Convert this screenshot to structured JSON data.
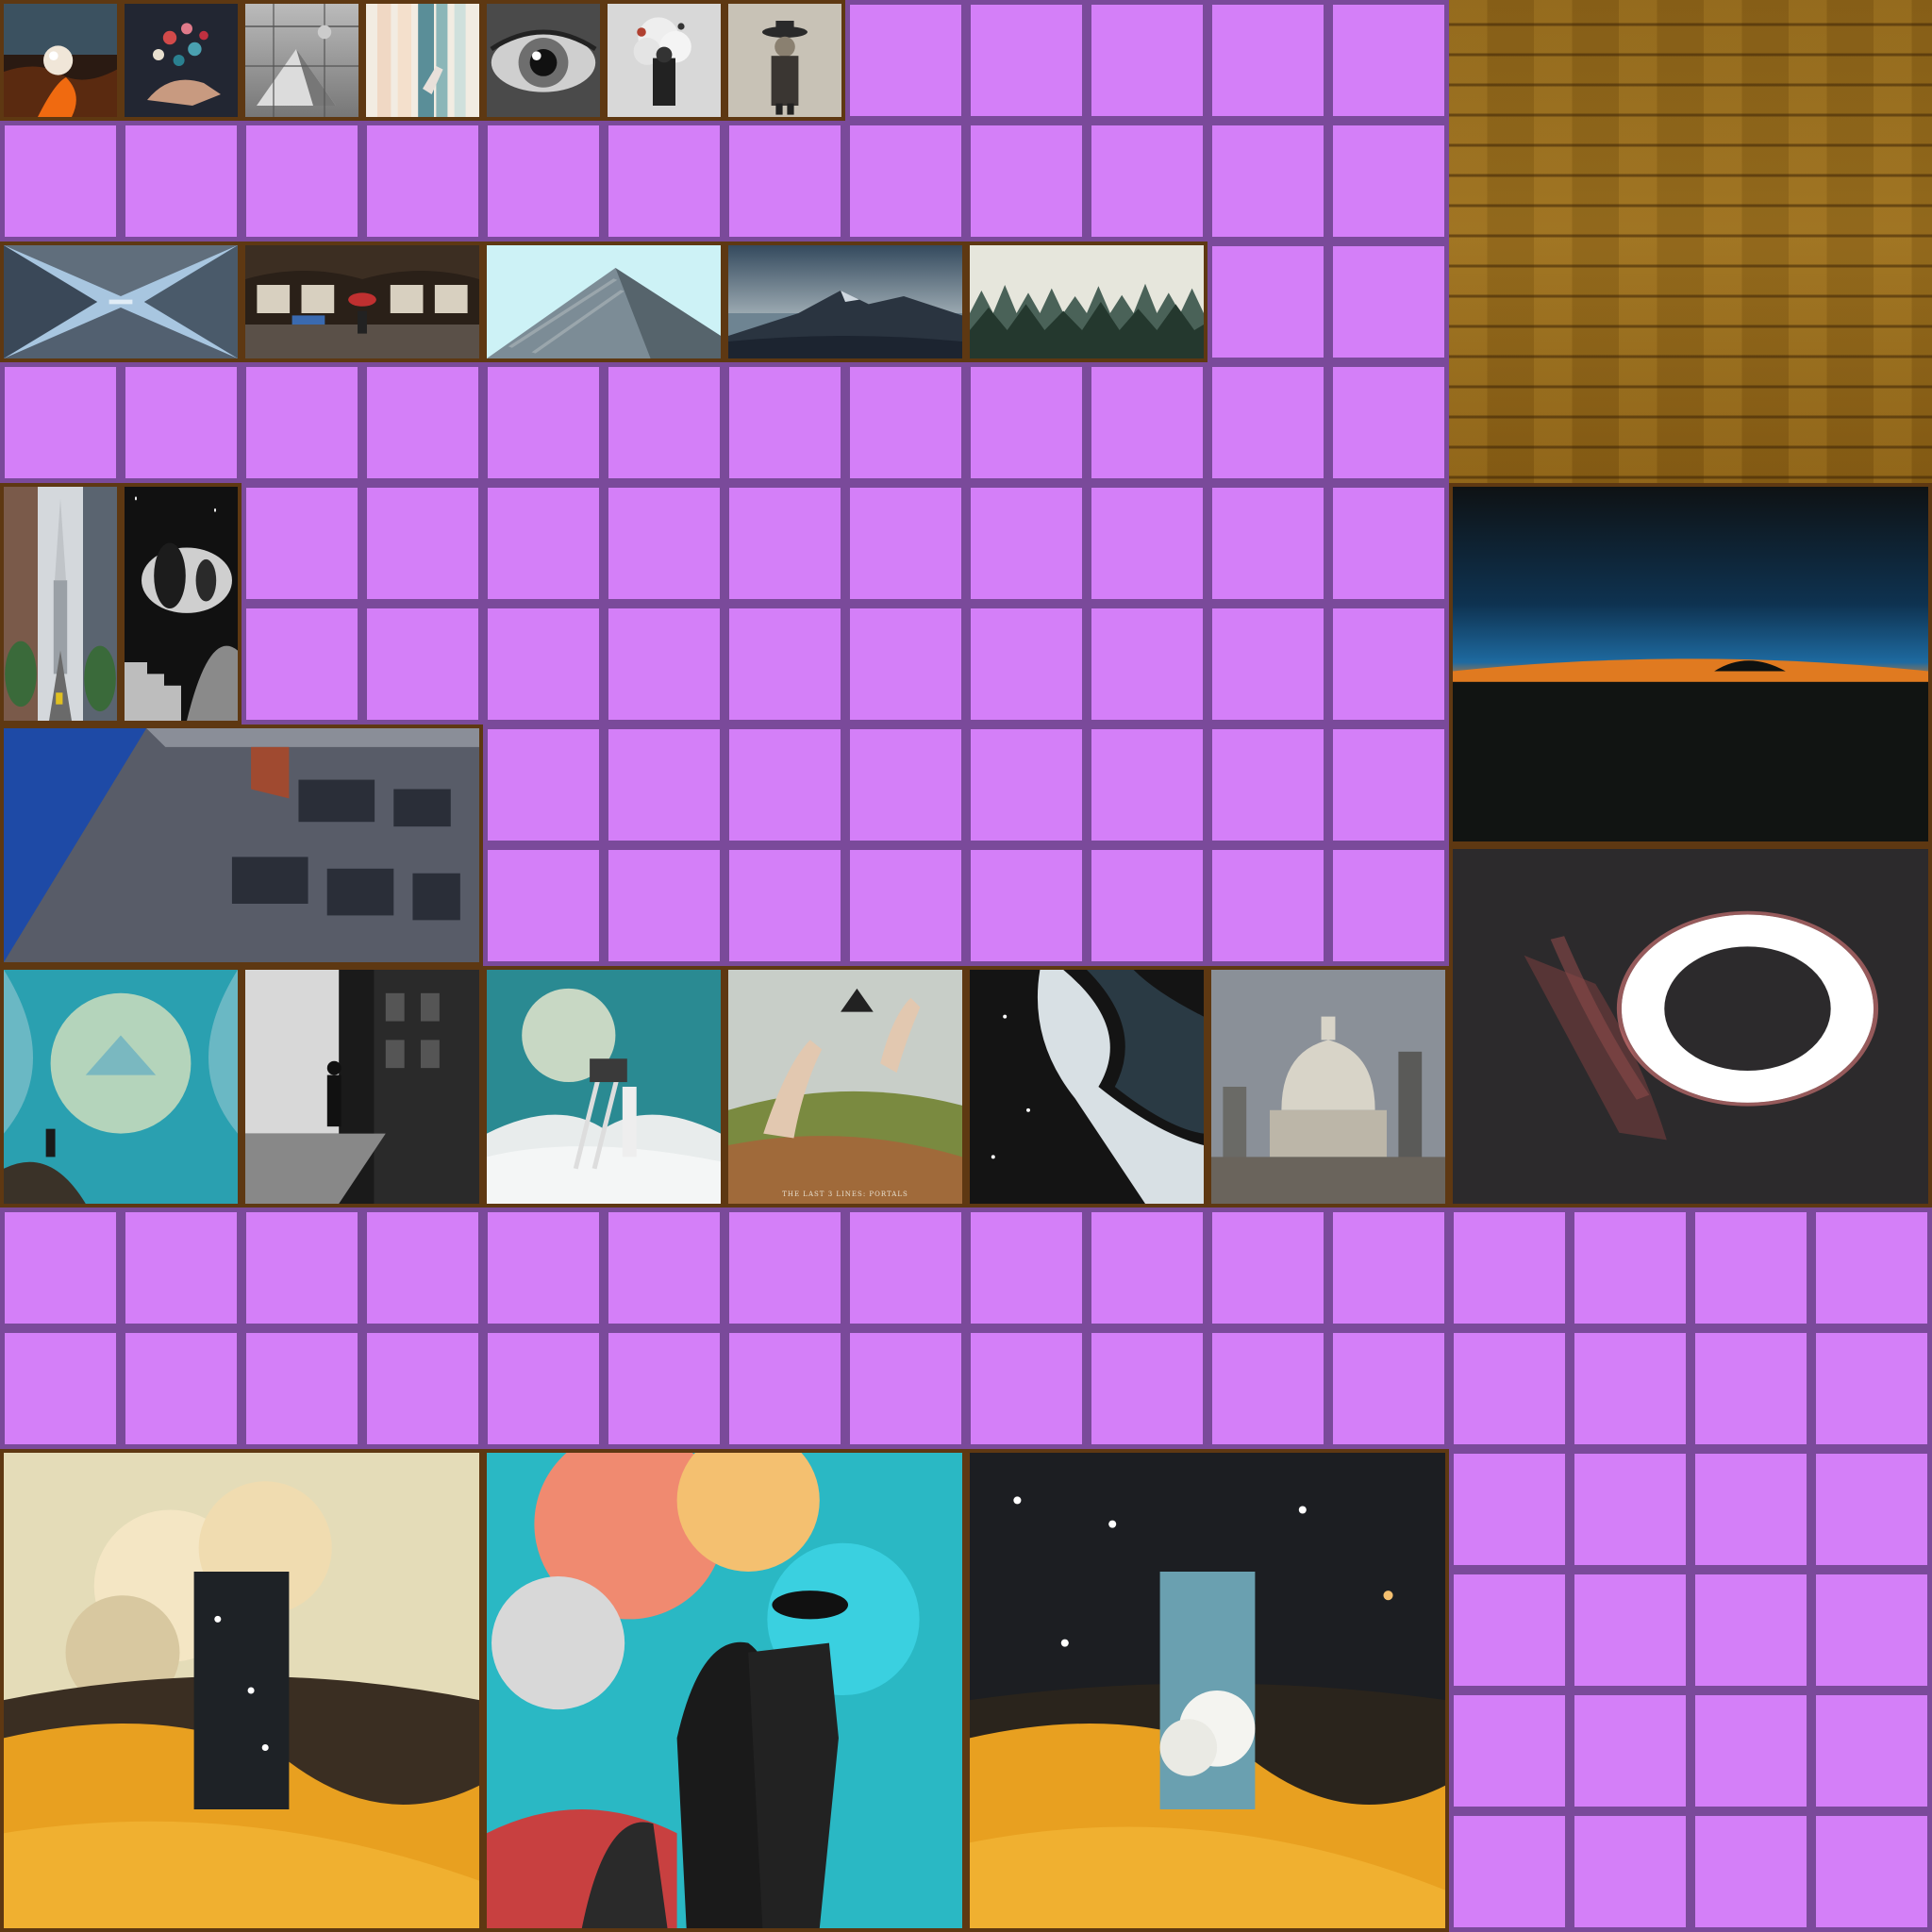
{
  "atlas": {
    "empty_slot_color": "#d47ff8",
    "grid_color": "#7a4a9a",
    "frame_color": "#5e3812",
    "wood_color": "#9b6f1e"
  },
  "paintings": [
    {
      "name": "painting-lava-sphere",
      "icon": "lava-sphere-art"
    },
    {
      "name": "painting-hand-petals",
      "icon": "hand-petals-art"
    },
    {
      "name": "painting-glass-building",
      "icon": "glass-building-art"
    },
    {
      "name": "painting-pastel-stripes",
      "icon": "pastel-stripes-art"
    },
    {
      "name": "painting-eye",
      "icon": "eye-art"
    },
    {
      "name": "painting-man-smoke",
      "icon": "man-smoke-art"
    },
    {
      "name": "painting-hat-man",
      "icon": "hat-man-art"
    },
    {
      "name": "painting-skyscrapers-up",
      "icon": "skyscrapers-art"
    },
    {
      "name": "painting-subway-station",
      "icon": "subway-art"
    },
    {
      "name": "painting-pyramid-building",
      "icon": "pyramid-building-art"
    },
    {
      "name": "painting-mountain",
      "icon": "mountain-art"
    },
    {
      "name": "painting-foggy-forest",
      "icon": "forest-art"
    },
    {
      "name": "painting-city-street",
      "icon": "city-street-art"
    },
    {
      "name": "painting-spheres-stairs",
      "icon": "spheres-stairs-art"
    },
    {
      "name": "painting-brick-building",
      "icon": "brick-building-art"
    },
    {
      "name": "painting-horizon-sunset",
      "icon": "horizon-art"
    },
    {
      "name": "painting-turquoise-mountains",
      "icon": "turquoise-art"
    },
    {
      "name": "painting-noir-street",
      "icon": "noir-street-art"
    },
    {
      "name": "painting-moon-ladder",
      "icon": "moon-ladder-art"
    },
    {
      "name": "painting-hands-pyramid",
      "icon": "hands-pyramid-art",
      "caption": "THE LAST 3 LINES: PORTALS"
    },
    {
      "name": "painting-space-wave",
      "icon": "space-wave-art"
    },
    {
      "name": "painting-st-pauls",
      "icon": "st-pauls-art"
    },
    {
      "name": "painting-glowing-ring",
      "icon": "glowing-ring-art"
    },
    {
      "name": "painting-dune-starry-door",
      "icon": "dune-door-art"
    },
    {
      "name": "painting-colorful-couple",
      "icon": "couple-art"
    },
    {
      "name": "painting-dune-sky-door",
      "icon": "dune-sky-door-art"
    }
  ]
}
